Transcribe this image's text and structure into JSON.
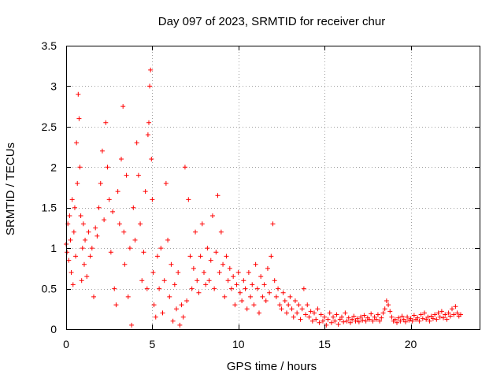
{
  "chart_data": {
    "type": "scatter",
    "title": "Day 097 of 2023, SRMTID for receiver chur",
    "xlabel": "GPS time / hours",
    "ylabel": "SRMTID / TECUs",
    "xlim": [
      0,
      24
    ],
    "ylim": [
      0,
      3.5
    ],
    "xticks": [
      0,
      5,
      10,
      15,
      20
    ],
    "xtick_labels": [
      "0",
      "5",
      "10",
      "15",
      "20"
    ],
    "yticks": [
      0,
      0.5,
      1,
      1.5,
      2,
      2.5,
      3,
      3.5
    ],
    "ytick_labels": [
      "0",
      "0.5",
      "1",
      "1.5",
      "2",
      "2.5",
      "3",
      "3.5"
    ],
    "grid": true,
    "marker": "+",
    "color": "#ff0000",
    "series": [
      {
        "name": "chur",
        "points": [
          [
            0.0,
            1.05
          ],
          [
            0.05,
            0.95
          ],
          [
            0.1,
            1.3
          ],
          [
            0.15,
            0.85
          ],
          [
            0.2,
            1.4
          ],
          [
            0.25,
            1.1
          ],
          [
            0.3,
            0.7
          ],
          [
            0.35,
            1.6
          ],
          [
            0.4,
            0.55
          ],
          [
            0.45,
            1.2
          ],
          [
            0.5,
            1.5
          ],
          [
            0.55,
            0.9
          ],
          [
            0.6,
            2.3
          ],
          [
            0.65,
            1.8
          ],
          [
            0.7,
            2.9
          ],
          [
            0.75,
            2.6
          ],
          [
            0.8,
            2.0
          ],
          [
            0.85,
            1.4
          ],
          [
            0.9,
            0.6
          ],
          [
            0.95,
            1.0
          ],
          [
            1.0,
            1.3
          ],
          [
            1.05,
            0.8
          ],
          [
            1.1,
            1.1
          ],
          [
            1.2,
            0.65
          ],
          [
            1.3,
            1.2
          ],
          [
            1.4,
            0.9
          ],
          [
            1.5,
            1.0
          ],
          [
            1.6,
            0.4
          ],
          [
            1.7,
            1.25
          ],
          [
            1.8,
            1.15
          ],
          [
            1.9,
            1.5
          ],
          [
            2.0,
            1.8
          ],
          [
            2.1,
            2.2
          ],
          [
            2.2,
            1.35
          ],
          [
            2.3,
            2.55
          ],
          [
            2.4,
            2.0
          ],
          [
            2.5,
            1.6
          ],
          [
            2.6,
            0.95
          ],
          [
            2.7,
            1.45
          ],
          [
            2.8,
            0.5
          ],
          [
            2.9,
            0.3
          ],
          [
            3.0,
            1.7
          ],
          [
            3.1,
            1.3
          ],
          [
            3.2,
            2.1
          ],
          [
            3.3,
            2.75
          ],
          [
            3.35,
            1.2
          ],
          [
            3.4,
            0.8
          ],
          [
            3.5,
            1.9
          ],
          [
            3.6,
            0.4
          ],
          [
            3.7,
            1.0
          ],
          [
            3.8,
            0.05
          ],
          [
            3.9,
            1.5
          ],
          [
            4.0,
            1.1
          ],
          [
            4.1,
            2.3
          ],
          [
            4.2,
            1.9
          ],
          [
            4.3,
            1.3
          ],
          [
            4.4,
            0.6
          ],
          [
            4.5,
            0.95
          ],
          [
            4.6,
            1.7
          ],
          [
            4.7,
            0.5
          ],
          [
            4.75,
            2.4
          ],
          [
            4.8,
            2.55
          ],
          [
            4.85,
            3.0
          ],
          [
            4.9,
            3.2
          ],
          [
            4.95,
            2.1
          ],
          [
            5.0,
            1.6
          ],
          [
            5.05,
            0.7
          ],
          [
            5.1,
            0.3
          ],
          [
            5.2,
            0.15
          ],
          [
            5.3,
            0.9
          ],
          [
            5.4,
            0.5
          ],
          [
            5.5,
            1.0
          ],
          [
            5.6,
            0.2
          ],
          [
            5.7,
            0.6
          ],
          [
            5.8,
            1.8
          ],
          [
            5.9,
            1.1
          ],
          [
            6.0,
            0.4
          ],
          [
            6.1,
            0.8
          ],
          [
            6.2,
            0.1
          ],
          [
            6.3,
            0.55
          ],
          [
            6.4,
            0.25
          ],
          [
            6.5,
            0.7
          ],
          [
            6.6,
            0.05
          ],
          [
            6.7,
            0.3
          ],
          [
            6.8,
            0.15
          ],
          [
            6.9,
            2.0
          ],
          [
            7.0,
            0.35
          ],
          [
            7.1,
            1.6
          ],
          [
            7.2,
            0.9
          ],
          [
            7.3,
            0.5
          ],
          [
            7.4,
            0.75
          ],
          [
            7.5,
            1.2
          ],
          [
            7.6,
            0.6
          ],
          [
            7.7,
            0.45
          ],
          [
            7.8,
            0.9
          ],
          [
            7.9,
            1.3
          ],
          [
            8.0,
            0.7
          ],
          [
            8.1,
            0.55
          ],
          [
            8.2,
            1.0
          ],
          [
            8.3,
            0.6
          ],
          [
            8.4,
            0.85
          ],
          [
            8.5,
            1.4
          ],
          [
            8.6,
            0.5
          ],
          [
            8.7,
            0.95
          ],
          [
            8.8,
            1.65
          ],
          [
            8.9,
            0.7
          ],
          [
            9.0,
            1.2
          ],
          [
            9.1,
            0.8
          ],
          [
            9.2,
            0.4
          ],
          [
            9.3,
            0.9
          ],
          [
            9.4,
            0.6
          ],
          [
            9.5,
            0.75
          ],
          [
            9.6,
            0.5
          ],
          [
            9.7,
            0.65
          ],
          [
            9.8,
            0.3
          ],
          [
            9.9,
            0.55
          ],
          [
            10.0,
            0.7
          ],
          [
            10.1,
            0.45
          ],
          [
            10.2,
            0.35
          ],
          [
            10.3,
            0.6
          ],
          [
            10.4,
            0.5
          ],
          [
            10.5,
            0.25
          ],
          [
            10.6,
            0.7
          ],
          [
            10.7,
            0.4
          ],
          [
            10.8,
            0.55
          ],
          [
            10.9,
            0.3
          ],
          [
            11.0,
            0.8
          ],
          [
            11.1,
            0.5
          ],
          [
            11.2,
            0.2
          ],
          [
            11.3,
            0.65
          ],
          [
            11.4,
            0.4
          ],
          [
            11.5,
            0.55
          ],
          [
            11.6,
            0.35
          ],
          [
            11.7,
            0.75
          ],
          [
            11.8,
            0.45
          ],
          [
            11.9,
            0.9
          ],
          [
            12.0,
            1.3
          ],
          [
            12.1,
            0.6
          ],
          [
            12.2,
            0.4
          ],
          [
            12.3,
            0.5
          ],
          [
            12.4,
            0.3
          ],
          [
            12.5,
            0.25
          ],
          [
            12.6,
            0.45
          ],
          [
            12.7,
            0.35
          ],
          [
            12.8,
            0.2
          ],
          [
            12.9,
            0.3
          ],
          [
            13.0,
            0.4
          ],
          [
            13.1,
            0.25
          ],
          [
            13.2,
            0.15
          ],
          [
            13.3,
            0.35
          ],
          [
            13.4,
            0.2
          ],
          [
            13.5,
            0.3
          ],
          [
            13.6,
            0.12
          ],
          [
            13.7,
            0.25
          ],
          [
            13.8,
            0.5
          ],
          [
            13.9,
            0.18
          ],
          [
            14.0,
            0.3
          ],
          [
            14.1,
            0.15
          ],
          [
            14.2,
            0.22
          ],
          [
            14.3,
            0.1
          ],
          [
            14.4,
            0.2
          ],
          [
            14.5,
            0.12
          ],
          [
            14.6,
            0.25
          ],
          [
            14.7,
            0.08
          ],
          [
            14.8,
            0.18
          ],
          [
            14.9,
            0.1
          ],
          [
            15.0,
            0.15
          ],
          [
            15.1,
            0.05
          ],
          [
            15.2,
            0.12
          ],
          [
            15.3,
            0.2
          ],
          [
            15.4,
            0.08
          ],
          [
            15.5,
            0.15
          ],
          [
            15.6,
            0.1
          ],
          [
            15.7,
            0.18
          ],
          [
            15.8,
            0.06
          ],
          [
            15.9,
            0.12
          ],
          [
            16.0,
            0.15
          ],
          [
            16.1,
            0.09
          ],
          [
            16.2,
            0.2
          ],
          [
            16.3,
            0.1
          ],
          [
            16.4,
            0.14
          ],
          [
            16.5,
            0.08
          ],
          [
            16.6,
            0.12
          ],
          [
            16.7,
            0.16
          ],
          [
            16.8,
            0.1
          ],
          [
            16.9,
            0.13
          ],
          [
            17.0,
            0.09
          ],
          [
            17.1,
            0.15
          ],
          [
            17.2,
            0.11
          ],
          [
            17.3,
            0.17
          ],
          [
            17.4,
            0.1
          ],
          [
            17.5,
            0.14
          ],
          [
            17.6,
            0.12
          ],
          [
            17.7,
            0.19
          ],
          [
            17.8,
            0.1
          ],
          [
            17.9,
            0.15
          ],
          [
            18.0,
            0.12
          ],
          [
            18.1,
            0.18
          ],
          [
            18.2,
            0.1
          ],
          [
            18.3,
            0.14
          ],
          [
            18.4,
            0.2
          ],
          [
            18.5,
            0.25
          ],
          [
            18.6,
            0.35
          ],
          [
            18.7,
            0.3
          ],
          [
            18.8,
            0.22
          ],
          [
            18.9,
            0.15
          ],
          [
            19.0,
            0.1
          ],
          [
            19.1,
            0.12
          ],
          [
            19.2,
            0.08
          ],
          [
            19.3,
            0.14
          ],
          [
            19.4,
            0.1
          ],
          [
            19.5,
            0.16
          ],
          [
            19.6,
            0.12
          ],
          [
            19.7,
            0.09
          ],
          [
            19.8,
            0.15
          ],
          [
            19.9,
            0.11
          ],
          [
            20.0,
            0.13
          ],
          [
            20.1,
            0.1
          ],
          [
            20.2,
            0.17
          ],
          [
            20.3,
            0.12
          ],
          [
            20.4,
            0.14
          ],
          [
            20.5,
            0.1
          ],
          [
            20.6,
            0.18
          ],
          [
            20.7,
            0.13
          ],
          [
            20.8,
            0.2
          ],
          [
            20.9,
            0.12
          ],
          [
            21.0,
            0.15
          ],
          [
            21.1,
            0.1
          ],
          [
            21.2,
            0.16
          ],
          [
            21.3,
            0.13
          ],
          [
            21.4,
            0.18
          ],
          [
            21.5,
            0.12
          ],
          [
            21.6,
            0.2
          ],
          [
            21.7,
            0.15
          ],
          [
            21.8,
            0.22
          ],
          [
            21.9,
            0.14
          ],
          [
            22.0,
            0.18
          ],
          [
            22.1,
            0.12
          ],
          [
            22.2,
            0.2
          ],
          [
            22.3,
            0.16
          ],
          [
            22.4,
            0.25
          ],
          [
            22.5,
            0.18
          ],
          [
            22.6,
            0.28
          ],
          [
            22.7,
            0.2
          ],
          [
            22.8,
            0.16
          ],
          [
            22.9,
            0.18
          ]
        ]
      }
    ]
  }
}
